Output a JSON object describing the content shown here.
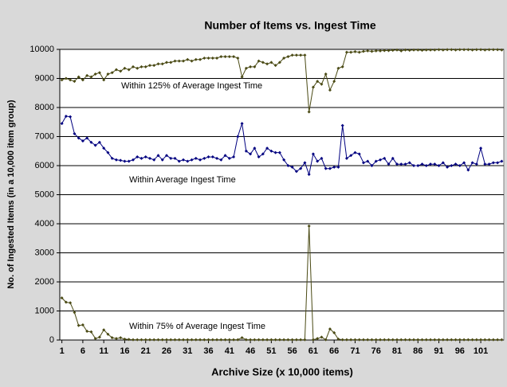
{
  "chart_data": {
    "type": "line",
    "title": "Number of Items vs. Ingest Time",
    "xlabel": "Archive Size (x 10,000 items)",
    "ylabel": "No. of Ingested Items (in a 10,000 item group)",
    "annotations": [
      "Within 125% of Average Ingest Time",
      "Within Average Ingest Time",
      "Within 75% of Average Ingest Time"
    ],
    "x": [
      1,
      2,
      3,
      4,
      5,
      6,
      7,
      8,
      9,
      10,
      11,
      12,
      13,
      14,
      15,
      16,
      17,
      18,
      19,
      20,
      21,
      22,
      23,
      24,
      25,
      26,
      27,
      28,
      29,
      30,
      31,
      32,
      33,
      34,
      35,
      36,
      37,
      38,
      39,
      40,
      41,
      42,
      43,
      44,
      45,
      46,
      47,
      48,
      49,
      50,
      51,
      52,
      53,
      54,
      55,
      56,
      57,
      58,
      59,
      60,
      61,
      62,
      63,
      64,
      65,
      66,
      67,
      68,
      69,
      70,
      71,
      72,
      73,
      74,
      75,
      76,
      77,
      78,
      79,
      80,
      81,
      82,
      83,
      84,
      85,
      86,
      87,
      88,
      89,
      90,
      91,
      92,
      93,
      94,
      95,
      96,
      97,
      98,
      99,
      100,
      101,
      102,
      103,
      104,
      105,
      106
    ],
    "xlim": [
      0.5,
      106.5
    ],
    "xticks": [
      1,
      6,
      11,
      16,
      21,
      26,
      31,
      36,
      41,
      46,
      51,
      56,
      61,
      66,
      71,
      76,
      81,
      86,
      91,
      96,
      101
    ],
    "ylim": [
      0,
      10000
    ],
    "yticks": [
      0,
      1000,
      2000,
      3000,
      4000,
      5000,
      6000,
      7000,
      8000,
      9000,
      10000
    ],
    "grid": true,
    "series": [
      {
        "color": "#4a4a14",
        "values": [
          8950,
          9000,
          8950,
          8900,
          9050,
          8950,
          9100,
          9050,
          9150,
          9200,
          8950,
          9150,
          9200,
          9300,
          9250,
          9350,
          9300,
          9400,
          9350,
          9400,
          9400,
          9450,
          9450,
          9500,
          9500,
          9550,
          9550,
          9600,
          9600,
          9600,
          9650,
          9600,
          9650,
          9650,
          9700,
          9700,
          9700,
          9700,
          9750,
          9750,
          9750,
          9750,
          9700,
          9050,
          9350,
          9400,
          9400,
          9600,
          9550,
          9500,
          9550,
          9450,
          9550,
          9700,
          9750,
          9800,
          9800,
          9800,
          9800,
          7850,
          8700,
          8900,
          8800,
          9150,
          8600,
          8900,
          9350,
          9400,
          9900,
          9900,
          9920,
          9900,
          9930,
          9950,
          9930,
          9950,
          9950,
          9960,
          9960,
          9970,
          9980,
          9950,
          9980,
          9970,
          9980,
          9980,
          9970,
          9980,
          9980,
          9980,
          9990,
          9980,
          9990,
          9990,
          9980,
          9990,
          9990,
          9990,
          9980,
          9990,
          9990,
          9980,
          9990,
          9990,
          9990,
          9980
        ]
      },
      {
        "color": "#000080",
        "values": [
          7450,
          7700,
          7680,
          7100,
          6950,
          6850,
          6950,
          6800,
          6700,
          6800,
          6600,
          6450,
          6250,
          6200,
          6180,
          6150,
          6150,
          6200,
          6300,
          6250,
          6300,
          6250,
          6200,
          6350,
          6200,
          6350,
          6250,
          6250,
          6150,
          6200,
          6150,
          6200,
          6250,
          6200,
          6250,
          6300,
          6300,
          6250,
          6200,
          6350,
          6250,
          6300,
          7000,
          7450,
          6500,
          6400,
          6600,
          6300,
          6400,
          6600,
          6500,
          6450,
          6450,
          6200,
          6000,
          5950,
          5800,
          5900,
          6100,
          5700,
          6400,
          6150,
          6250,
          5900,
          5900,
          5950,
          5950,
          7380,
          6250,
          6350,
          6450,
          6400,
          6100,
          6150,
          6000,
          6150,
          6200,
          6250,
          6050,
          6250,
          6050,
          6050,
          6050,
          6100,
          6000,
          6000,
          6050,
          6000,
          6050,
          6050,
          6000,
          6100,
          5950,
          6000,
          6050,
          6000,
          6100,
          5850,
          6100,
          6050,
          6600,
          6050,
          6050,
          6100,
          6100,
          6150
        ]
      },
      {
        "color": "#4a4a14",
        "values": [
          1450,
          1300,
          1280,
          950,
          500,
          520,
          300,
          280,
          50,
          100,
          350,
          200,
          80,
          50,
          80,
          30,
          20,
          10,
          10,
          10,
          10,
          10,
          10,
          10,
          10,
          10,
          10,
          10,
          10,
          10,
          10,
          10,
          10,
          10,
          10,
          10,
          10,
          10,
          10,
          10,
          10,
          10,
          10,
          80,
          10,
          10,
          10,
          10,
          10,
          10,
          10,
          10,
          10,
          10,
          10,
          10,
          10,
          10,
          10,
          3920,
          10,
          50,
          100,
          10,
          380,
          250,
          30,
          10,
          10,
          10,
          10,
          10,
          10,
          10,
          10,
          10,
          10,
          10,
          10,
          10,
          10,
          10,
          10,
          10,
          10,
          10,
          10,
          10,
          10,
          10,
          10,
          10,
          10,
          10,
          10,
          10,
          10,
          10,
          10,
          10,
          10,
          10,
          10,
          10,
          10,
          10
        ]
      }
    ]
  }
}
